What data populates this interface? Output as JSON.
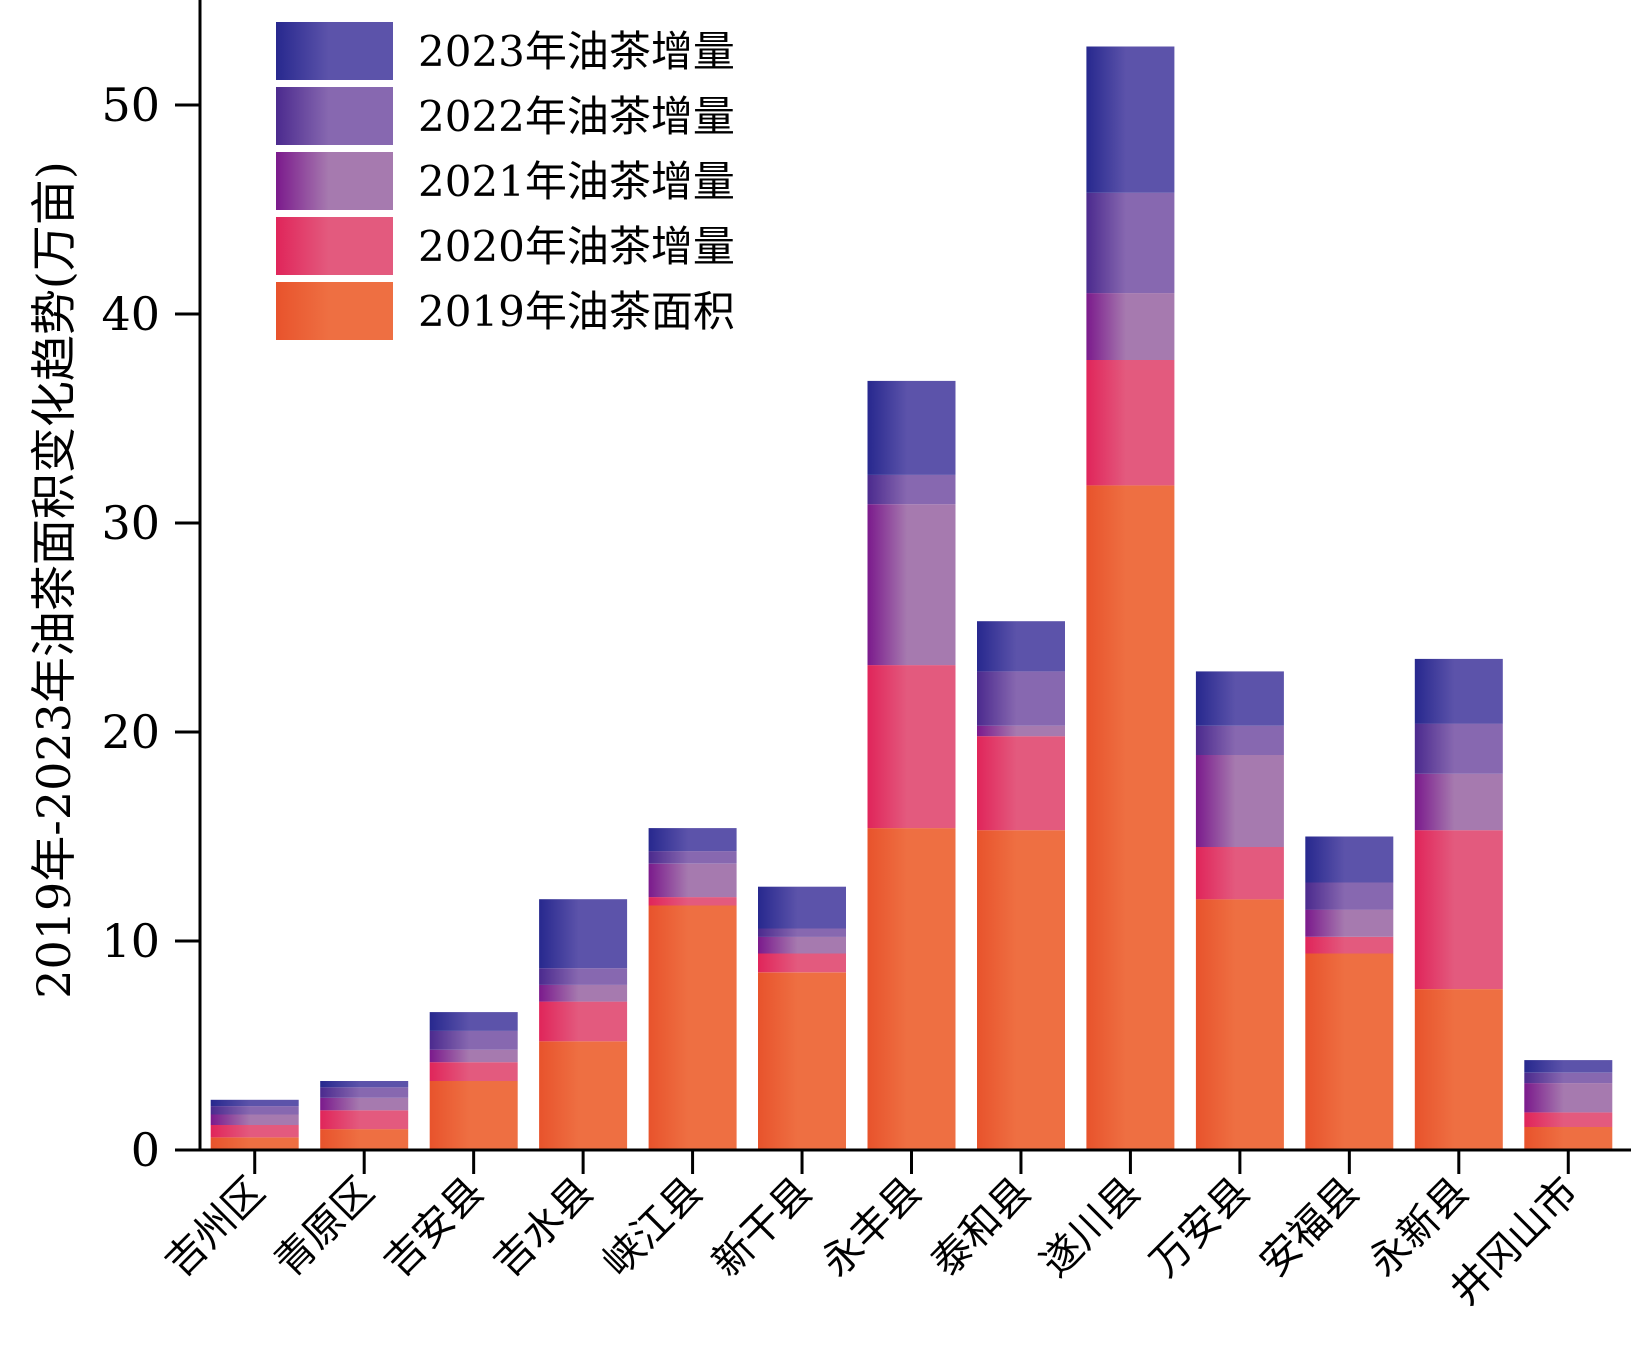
{
  "chart_data": {
    "type": "bar",
    "stacked": true,
    "ylabel": "2019年-2023年油茶面积变化趋势(万亩)",
    "xlabel": "",
    "ylim": [
      0,
      54
    ],
    "yticks": [
      0,
      10,
      20,
      30,
      40,
      50
    ],
    "ytick_labels": [
      "0",
      "10",
      "20",
      "30",
      "40",
      "50"
    ],
    "grid": false,
    "legend_position": "top-left",
    "categories": [
      "吉州区",
      "青原区",
      "吉安县",
      "吉水县",
      "峡江县",
      "新干县",
      "永丰县",
      "泰和县",
      "遂川县",
      "万安县",
      "安福县",
      "永新县",
      "井冈山市"
    ],
    "series": [
      {
        "name": "2019年油茶面积",
        "color": "#ee6f42",
        "color_dark": "#e8532c",
        "values": [
          0.6,
          1.0,
          3.3,
          5.2,
          11.7,
          8.5,
          15.4,
          15.3,
          31.8,
          12.0,
          9.4,
          7.7,
          1.1
        ]
      },
      {
        "name": "2020年油茶增量",
        "color": "#e35a7e",
        "color_dark": "#e0255a",
        "values": [
          0.6,
          0.9,
          0.9,
          1.9,
          0.4,
          0.9,
          7.8,
          4.5,
          6.0,
          2.5,
          0.8,
          7.6,
          0.7
        ]
      },
      {
        "name": "2021年油茶增量",
        "color": "#a67aaf",
        "color_dark": "#7b1a8c",
        "values": [
          0.5,
          0.6,
          0.6,
          0.8,
          1.6,
          0.8,
          7.7,
          0.5,
          3.2,
          4.4,
          1.3,
          2.7,
          1.4
        ]
      },
      {
        "name": "2022年油茶增量",
        "color": "#8768b0",
        "color_dark": "#4b2a8e",
        "values": [
          0.4,
          0.5,
          0.9,
          0.8,
          0.6,
          0.4,
          1.4,
          2.6,
          4.8,
          1.4,
          1.3,
          2.4,
          0.5
        ]
      },
      {
        "name": "2023年油茶增量",
        "color": "#5c53aa",
        "color_dark": "#27288e",
        "values": [
          0.3,
          0.3,
          0.9,
          3.3,
          1.1,
          2.0,
          4.5,
          2.4,
          7.0,
          2.6,
          2.2,
          3.1,
          0.6
        ]
      }
    ],
    "legend_order": [
      "2023年油茶增量",
      "2022年油茶增量",
      "2021年油茶增量",
      "2020年油茶增量",
      "2019年油茶面积"
    ]
  }
}
